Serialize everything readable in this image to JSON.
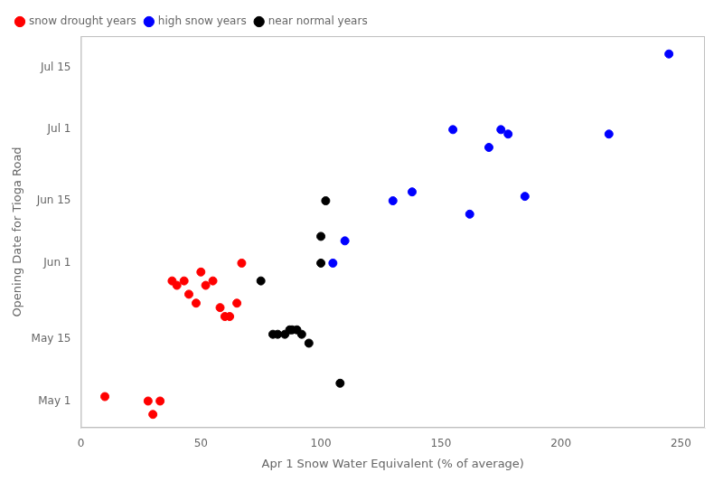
{
  "chart_data": {
    "type": "scatter",
    "xlabel": "Apr 1 Snow Water Equivalent (% of average)",
    "ylabel": "Opening Date for Tioga Road",
    "xlim": [
      0,
      260
    ],
    "ylim": [
      115,
      203
    ],
    "xticks": [
      0,
      50,
      100,
      150,
      200,
      250
    ],
    "yticks": [
      {
        "value": 121,
        "label": "May 1"
      },
      {
        "value": 135,
        "label": "May 15"
      },
      {
        "value": 152,
        "label": "Jun 1"
      },
      {
        "value": 166,
        "label": "Jun 15"
      },
      {
        "value": 182,
        "label": "Jul 1"
      },
      {
        "value": 196,
        "label": "Jul 15"
      }
    ],
    "grid": false,
    "legend": "upper left",
    "series": [
      {
        "name": "snow drought years",
        "color": "red",
        "values": [
          [
            10,
            122
          ],
          [
            28,
            121
          ],
          [
            30,
            118
          ],
          [
            33,
            121
          ],
          [
            38,
            148
          ],
          [
            40,
            147
          ],
          [
            43,
            148
          ],
          [
            45,
            145
          ],
          [
            48,
            143
          ],
          [
            50,
            150
          ],
          [
            52,
            147
          ],
          [
            55,
            148
          ],
          [
            58,
            142
          ],
          [
            60,
            140
          ],
          [
            62,
            140
          ],
          [
            65,
            143
          ],
          [
            67,
            152
          ]
        ]
      },
      {
        "name": "high snow years",
        "color": "blue",
        "values": [
          [
            105,
            152
          ],
          [
            110,
            157
          ],
          [
            130,
            166
          ],
          [
            138,
            168
          ],
          [
            155,
            182
          ],
          [
            162,
            163
          ],
          [
            170,
            178
          ],
          [
            175,
            182
          ],
          [
            178,
            181
          ],
          [
            185,
            167
          ],
          [
            220,
            181
          ],
          [
            245,
            199
          ]
        ]
      },
      {
        "name": "near normal years",
        "color": "black",
        "values": [
          [
            75,
            148
          ],
          [
            80,
            136
          ],
          [
            82,
            136
          ],
          [
            85,
            136
          ],
          [
            87,
            137
          ],
          [
            88,
            137
          ],
          [
            90,
            137
          ],
          [
            92,
            136
          ],
          [
            95,
            134
          ],
          [
            100,
            152
          ],
          [
            100,
            158
          ],
          [
            102,
            166
          ],
          [
            108,
            125
          ]
        ]
      }
    ]
  }
}
